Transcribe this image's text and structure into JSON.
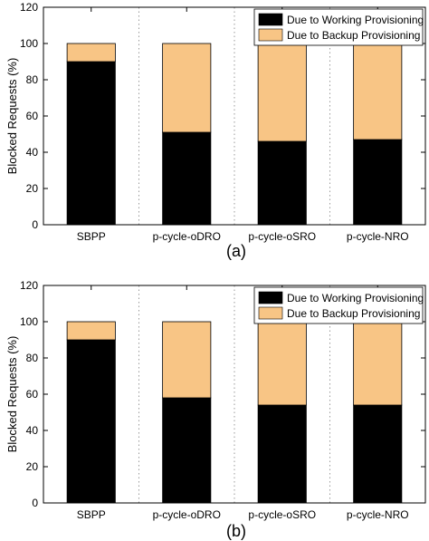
{
  "colors": {
    "working": "#000000",
    "backup": "#f8c585",
    "frame": "#000000",
    "grid": "#9a9a9a"
  },
  "chart_data": [
    {
      "type": "bar",
      "stacked": true,
      "panel_label": "(a)",
      "ylabel": "Blocked Requests (%)",
      "xlabel": "",
      "ylim": [
        0,
        120
      ],
      "yticks": [
        0,
        20,
        40,
        60,
        80,
        100,
        120
      ],
      "grid": "dotted vertical separators",
      "legend_position": "top-right",
      "categories": [
        "SBPP",
        "p-cycle-oDRO",
        "p-cycle-oSRO",
        "p-cycle-NRO"
      ],
      "series": [
        {
          "name": "Due to Working Provisioning",
          "color_key": "working",
          "values": [
            90,
            51,
            46,
            47
          ]
        },
        {
          "name": "Due to Backup Provisioning",
          "color_key": "backup",
          "values": [
            10,
            49,
            54,
            53
          ]
        }
      ]
    },
    {
      "type": "bar",
      "stacked": true,
      "panel_label": "(b)",
      "ylabel": "Blocked Requests (%)",
      "xlabel": "",
      "ylim": [
        0,
        120
      ],
      "yticks": [
        0,
        20,
        40,
        60,
        80,
        100,
        120
      ],
      "grid": "dotted vertical separators",
      "legend_position": "top-right",
      "categories": [
        "SBPP",
        "p-cycle-oDRO",
        "p-cycle-oSRO",
        "p-cycle-NRO"
      ],
      "series": [
        {
          "name": "Due to Working Provisioning",
          "color_key": "working",
          "values": [
            90,
            58,
            54,
            54
          ]
        },
        {
          "name": "Due to Backup Provisioning",
          "color_key": "backup",
          "values": [
            10,
            42,
            46,
            46
          ]
        }
      ]
    }
  ]
}
